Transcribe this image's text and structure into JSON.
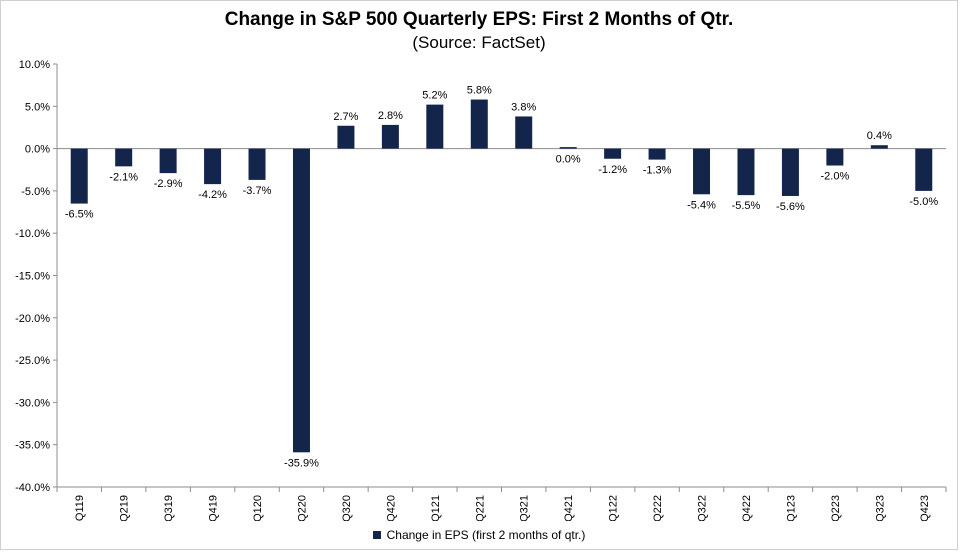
{
  "colors": {
    "bar": "#14254c",
    "axis": "#8c8c8c",
    "background": "#ffffff"
  },
  "chart_data": {
    "type": "bar",
    "title": "Change in S&P 500 Quarterly EPS: First 2 Months of Qtr.",
    "subtitle": "(Source: FactSet)",
    "categories": [
      "Q119",
      "Q219",
      "Q319",
      "Q419",
      "Q120",
      "Q220",
      "Q320",
      "Q420",
      "Q121",
      "Q221",
      "Q321",
      "Q421",
      "Q122",
      "Q222",
      "Q322",
      "Q422",
      "Q123",
      "Q223",
      "Q323",
      "Q423"
    ],
    "series": [
      {
        "name": "Change in EPS (first 2 months of qtr.)",
        "values": [
          -6.5,
          -2.1,
          -2.9,
          -4.2,
          -3.7,
          -35.9,
          2.7,
          2.8,
          5.2,
          5.8,
          3.8,
          0.0,
          -1.2,
          -1.3,
          -5.4,
          -5.5,
          -5.6,
          -2.0,
          0.4,
          -5.0
        ],
        "labels": [
          "-6.5%",
          "-2.1%",
          "-2.9%",
          "-4.2%",
          "-3.7%",
          "-35.9%",
          "2.7%",
          "2.8%",
          "5.2%",
          "5.8%",
          "3.8%",
          "0.0%",
          "-1.2%",
          "-1.3%",
          "-5.4%",
          "-5.5%",
          "-5.6%",
          "-2.0%",
          "0.4%",
          "-5.0%"
        ]
      }
    ],
    "ylim": [
      -40,
      10
    ],
    "yticks": [
      10,
      5,
      0,
      -5,
      -10,
      -15,
      -20,
      -25,
      -30,
      -35,
      -40
    ],
    "ytick_labels": [
      "10.0%",
      "5.0%",
      "0.0%",
      "-5.0%",
      "-10.0%",
      "-15.0%",
      "-20.0%",
      "-25.0%",
      "-30.0%",
      "-35.0%",
      "-40.0%"
    ],
    "grid": false,
    "legend_position": "bottom"
  }
}
